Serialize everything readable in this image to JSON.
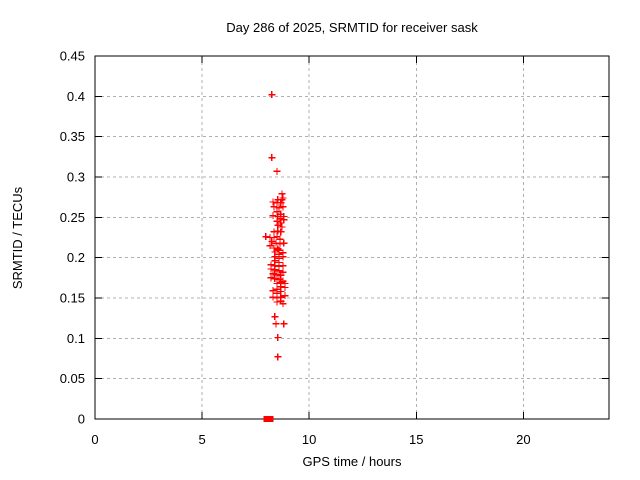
{
  "page": {
    "background": "#ffffff"
  },
  "chart_data": {
    "type": "scatter",
    "title": "Day 286 of 2025, SRMTID for receiver sask",
    "xlabel": "GPS time / hours",
    "ylabel": "SRMTID / TECUs",
    "xlim": [
      0,
      24
    ],
    "ylim": [
      0,
      0.45
    ],
    "xticks": {
      "values": [
        0,
        5,
        10,
        15,
        20
      ],
      "labels": [
        "0",
        "5",
        "10",
        "15",
        "20"
      ]
    },
    "yticks": {
      "values": [
        0,
        0.05,
        0.1,
        0.15,
        0.2,
        0.25,
        0.3,
        0.35,
        0.4,
        0.45
      ],
      "labels": [
        "0",
        "0.05",
        "0.1",
        "0.15",
        "0.2",
        "0.25",
        "0.3",
        "0.35",
        "0.4",
        "0.45"
      ]
    },
    "grid": true,
    "grid_color": "#b0b0b0",
    "axis_color": "#000000",
    "legend": "none",
    "series": [
      {
        "name": "srmtid-plus-points",
        "marker": "plus",
        "color": "#ff0000",
        "points": [
          [
            8.26,
            0.402
          ],
          [
            8.26,
            0.324
          ],
          [
            8.5,
            0.307
          ],
          [
            8.73,
            0.279
          ],
          [
            8.78,
            0.274
          ],
          [
            8.73,
            0.272
          ],
          [
            8.54,
            0.272
          ],
          [
            8.31,
            0.269
          ],
          [
            8.5,
            0.268
          ],
          [
            8.68,
            0.268
          ],
          [
            8.36,
            0.263
          ],
          [
            8.78,
            0.263
          ],
          [
            8.59,
            0.262
          ],
          [
            8.5,
            0.257
          ],
          [
            8.68,
            0.254
          ],
          [
            8.31,
            0.252
          ],
          [
            8.54,
            0.251
          ],
          [
            8.82,
            0.251
          ],
          [
            8.64,
            0.248
          ],
          [
            8.82,
            0.247
          ],
          [
            8.5,
            0.245
          ],
          [
            8.68,
            0.243
          ],
          [
            8.54,
            0.24
          ],
          [
            8.73,
            0.238
          ],
          [
            8.54,
            0.233
          ],
          [
            8.36,
            0.232
          ],
          [
            8.68,
            0.232
          ],
          [
            7.98,
            0.226
          ],
          [
            8.5,
            0.226
          ],
          [
            8.17,
            0.225
          ],
          [
            8.36,
            0.225
          ],
          [
            8.64,
            0.223
          ],
          [
            8.26,
            0.22
          ],
          [
            8.45,
            0.218
          ],
          [
            8.82,
            0.218
          ],
          [
            8.64,
            0.217
          ],
          [
            8.17,
            0.215
          ],
          [
            8.36,
            0.212
          ],
          [
            8.54,
            0.211
          ],
          [
            8.59,
            0.209
          ],
          [
            8.4,
            0.207
          ],
          [
            8.78,
            0.206
          ],
          [
            8.59,
            0.204
          ],
          [
            8.4,
            0.201
          ],
          [
            8.78,
            0.201
          ],
          [
            8.59,
            0.199
          ],
          [
            8.4,
            0.196
          ],
          [
            8.59,
            0.194
          ],
          [
            8.22,
            0.191
          ],
          [
            8.4,
            0.19
          ],
          [
            8.78,
            0.19
          ],
          [
            8.59,
            0.189
          ],
          [
            8.22,
            0.186
          ],
          [
            8.4,
            0.185
          ],
          [
            8.59,
            0.184
          ],
          [
            8.78,
            0.182
          ],
          [
            8.31,
            0.18
          ],
          [
            8.5,
            0.179
          ],
          [
            8.68,
            0.178
          ],
          [
            8.22,
            0.175
          ],
          [
            8.4,
            0.174
          ],
          [
            8.59,
            0.173
          ],
          [
            8.78,
            0.171
          ],
          [
            8.68,
            0.169
          ],
          [
            8.5,
            0.168
          ],
          [
            8.87,
            0.168
          ],
          [
            8.68,
            0.164
          ],
          [
            8.87,
            0.163
          ],
          [
            8.5,
            0.161
          ],
          [
            8.31,
            0.159
          ],
          [
            8.68,
            0.158
          ],
          [
            8.5,
            0.156
          ],
          [
            8.87,
            0.153
          ],
          [
            8.31,
            0.151
          ],
          [
            8.68,
            0.151
          ],
          [
            8.5,
            0.15
          ],
          [
            8.68,
            0.146
          ],
          [
            8.5,
            0.145
          ],
          [
            8.78,
            0.143
          ],
          [
            8.4,
            0.127
          ],
          [
            8.45,
            0.118
          ],
          [
            8.82,
            0.118
          ],
          [
            8.54,
            0.101
          ],
          [
            8.54,
            0.077
          ]
        ]
      },
      {
        "name": "zero-baseline-squares",
        "marker": "filled-square",
        "color": "#ff0000",
        "points": [
          [
            8.0,
            0
          ],
          [
            8.1,
            0
          ],
          [
            8.2,
            0
          ]
        ]
      }
    ]
  }
}
